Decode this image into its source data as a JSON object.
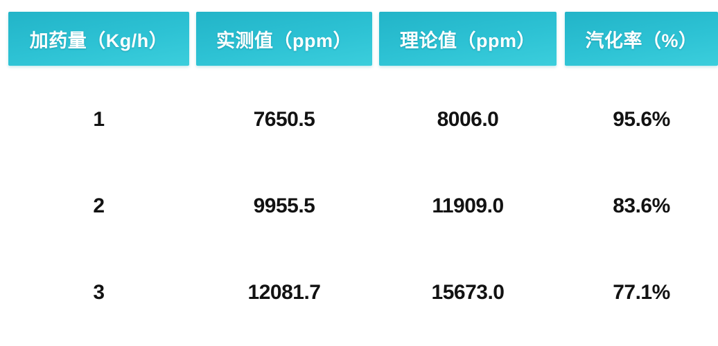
{
  "chart_data": {
    "type": "table",
    "columns": [
      "加药量（Kg/h）",
      "实测值（ppm）",
      "理论值（ppm）",
      "汽化率（%）"
    ],
    "rows": [
      [
        "1",
        "7650.5",
        "8006.0",
        "95.6%"
      ],
      [
        "2",
        "9955.5",
        "11909.0",
        "83.6%"
      ],
      [
        "3",
        "12081.7",
        "15673.0",
        "77.1%"
      ]
    ],
    "column_units": [
      "Kg/h",
      "ppm",
      "ppm",
      "%"
    ],
    "numeric_rows": [
      {
        "dosage_kg_h": 1,
        "measured_ppm": 7650.5,
        "theoretical_ppm": 8006.0,
        "vaporization_rate_pct": 95.6
      },
      {
        "dosage_kg_h": 2,
        "measured_ppm": 9955.5,
        "theoretical_ppm": 11909.0,
        "vaporization_rate_pct": 83.6
      },
      {
        "dosage_kg_h": 3,
        "measured_ppm": 12081.7,
        "theoretical_ppm": 15673.0,
        "vaporization_rate_pct": 77.1
      }
    ]
  },
  "colors": {
    "header_gradient_top": "#22b4c8",
    "header_gradient_bottom": "#3bcedc",
    "header_text": "#ffffff",
    "body_text": "#121212",
    "background": "#ffffff"
  }
}
